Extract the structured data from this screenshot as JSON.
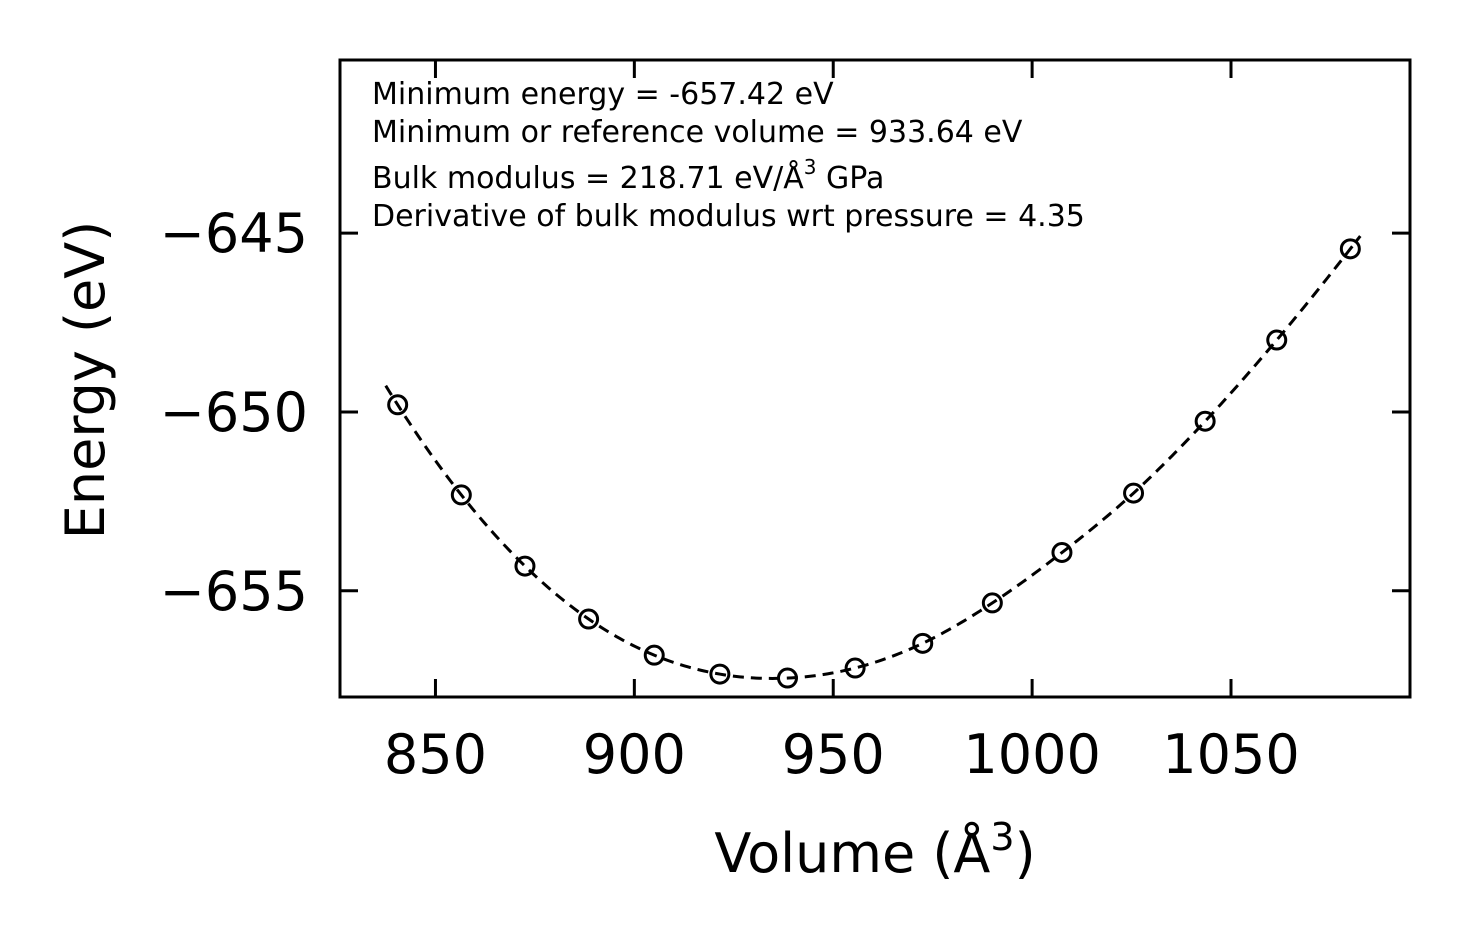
{
  "chart_data": {
    "type": "scatter",
    "title": "",
    "xlabel": "Volume (Å",
    "xlabel_sup": "3",
    "xlabel_end": ")",
    "ylabel": "Energy (eV)",
    "xlim": [
      826,
      1095
    ],
    "ylim": [
      -657.97,
      -640.16
    ],
    "x_ticks": [
      850,
      900,
      950,
      1000,
      1050
    ],
    "y_ticks": [
      -645,
      -650,
      -655
    ],
    "x_tick_labels": [
      "850",
      "900",
      "950",
      "1000",
      "1050"
    ],
    "y_tick_labels": [
      "−645",
      "−650",
      "−655"
    ],
    "series": [
      {
        "name": "data",
        "marker": "open-circle",
        "x": [
          840.5,
          856.5,
          872.5,
          888.5,
          905.0,
          921.5,
          938.5,
          955.5,
          972.5,
          990.0,
          1007.5,
          1025.5,
          1043.5,
          1061.5,
          1080.0
        ],
        "y": [
          -649.8,
          -652.32,
          -654.31,
          -655.79,
          -656.8,
          -657.33,
          -657.44,
          -657.16,
          -656.47,
          -655.34,
          -653.93,
          -652.27,
          -650.26,
          -647.99,
          -645.44
        ]
      },
      {
        "name": "fit",
        "style": "dashed-line",
        "min_volume": 933.64,
        "min_energy": -657.42
      }
    ],
    "annotations": [
      "Minimum energy = -657.42 eV",
      "Minimum or reference volume = 933.64 eV",
      "Bulk modulus = 218.71 eV/Å",
      "3",
      " GPa",
      "Derivative of bulk modulus wrt pressure = 4.35"
    ]
  }
}
